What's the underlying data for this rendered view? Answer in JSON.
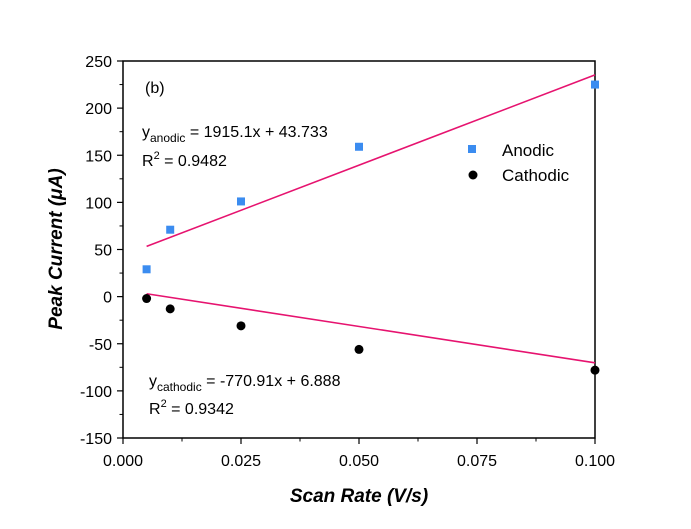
{
  "chart_data": {
    "type": "scatter",
    "panel_label": "(b)",
    "xlabel": "Scan Rate (V/s)",
    "ylabel": "Peak Current (μA)",
    "xlim": [
      0.0,
      0.1
    ],
    "ylim": [
      -150,
      250
    ],
    "x_ticks": [
      "0.000",
      "0.025",
      "0.050",
      "0.075",
      "0.100"
    ],
    "y_ticks": [
      "-150",
      "-100",
      "-50",
      "0",
      "50",
      "100",
      "150",
      "200",
      "250"
    ],
    "legend_position": "right",
    "series": [
      {
        "name": "Anodic",
        "marker": "square",
        "color": "#3b8cf0",
        "x": [
          0.005,
          0.01,
          0.025,
          0.05,
          0.1
        ],
        "y": [
          29,
          71,
          101,
          159,
          225
        ]
      },
      {
        "name": "Cathodic",
        "marker": "circle",
        "color": "#000000",
        "x": [
          0.005,
          0.01,
          0.025,
          0.05,
          0.1
        ],
        "y": [
          -2,
          -13,
          -31,
          -56,
          -78
        ]
      }
    ],
    "fits": [
      {
        "slope": 1915.1,
        "intercept": 43.733,
        "x_range": [
          0.005,
          0.1
        ],
        "color": "#e6136f",
        "eq_prefix": "y",
        "eq_sub": "anodic",
        "eq_rest": " = 1915.1x + 43.733",
        "r2_prefix": "R",
        "r2_sup": "2",
        "r2_rest": " = 0.9482"
      },
      {
        "slope": -770.91,
        "intercept": 6.888,
        "x_range": [
          0.005,
          0.1
        ],
        "color": "#e6136f",
        "eq_prefix": "y",
        "eq_sub": "cathodic",
        "eq_rest": " = -770.91x + 6.888",
        "r2_prefix": "R",
        "r2_sup": "2",
        "r2_rest": " = 0.9342"
      }
    ]
  }
}
